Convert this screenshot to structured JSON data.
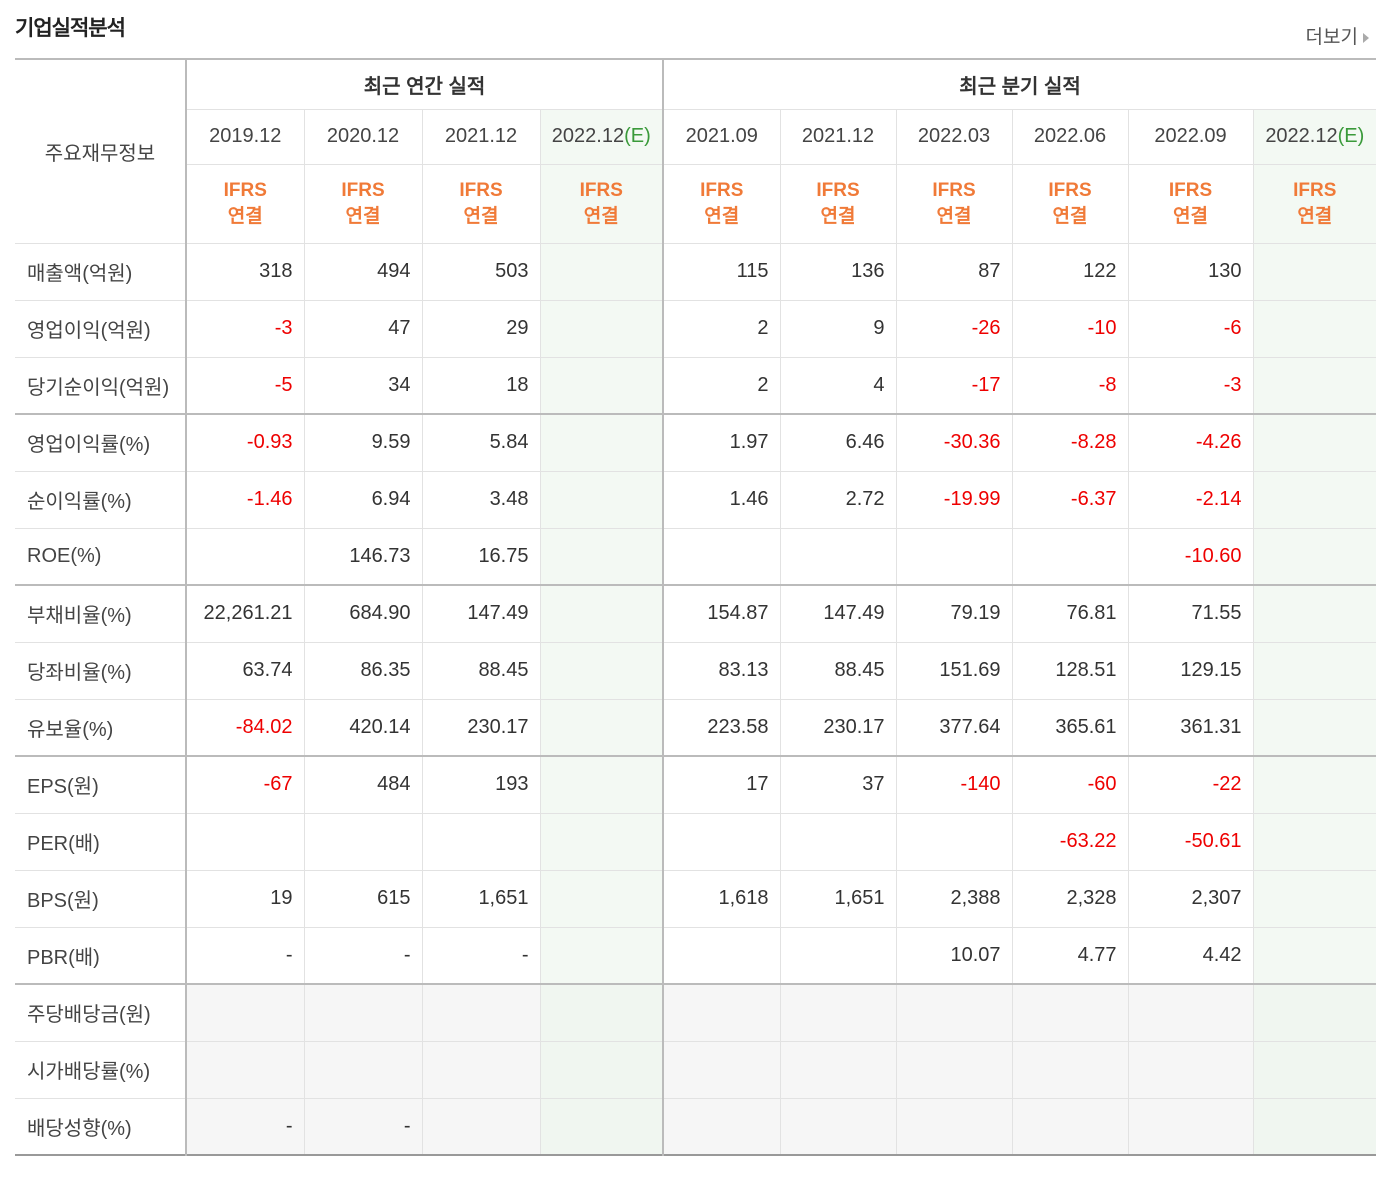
{
  "header": {
    "title": "기업실적분석",
    "more": "더보기"
  },
  "table": {
    "row_header": "주요재무정보",
    "groups": [
      {
        "name": "최근 연간 실적",
        "periods": [
          {
            "period": "2019.12",
            "basis": [
              "IFRS",
              "연결"
            ]
          },
          {
            "period": "2020.12",
            "basis": [
              "IFRS",
              "연결"
            ]
          },
          {
            "period": "2021.12",
            "basis": [
              "IFRS",
              "연결"
            ]
          },
          {
            "period": "2022.12",
            "estimate": "(E)",
            "basis": [
              "IFRS",
              "연결"
            ]
          }
        ]
      },
      {
        "name": "최근 분기 실적",
        "periods": [
          {
            "period": "2021.09",
            "basis": [
              "IFRS",
              "연결"
            ]
          },
          {
            "period": "2021.12",
            "basis": [
              "IFRS",
              "연결"
            ]
          },
          {
            "period": "2022.03",
            "basis": [
              "IFRS",
              "연결"
            ]
          },
          {
            "period": "2022.06",
            "basis": [
              "IFRS",
              "연결"
            ]
          },
          {
            "period": "2022.09",
            "basis": [
              "IFRS",
              "연결"
            ]
          },
          {
            "period": "2022.12",
            "estimate": "(E)",
            "basis": [
              "IFRS",
              "연결"
            ]
          }
        ]
      }
    ],
    "rows": [
      {
        "label": "매출액(억원)",
        "cells": [
          "318",
          "494",
          "503",
          null,
          "115",
          "136",
          "87",
          "122",
          "130",
          null
        ]
      },
      {
        "label": "영업이익(억원)",
        "cells": [
          "-3",
          "47",
          "29",
          null,
          "2",
          "9",
          "-26",
          "-10",
          "-6",
          null
        ]
      },
      {
        "label": "당기순이익(억원)",
        "cells": [
          "-5",
          "34",
          "18",
          null,
          "2",
          "4",
          "-17",
          "-8",
          "-3",
          null
        ]
      },
      {
        "label": "영업이익률(%)",
        "cells": [
          "-0.93",
          "9.59",
          "5.84",
          null,
          "1.97",
          "6.46",
          "-30.36",
          "-8.28",
          "-4.26",
          null
        ]
      },
      {
        "label": "순이익률(%)",
        "cells": [
          "-1.46",
          "6.94",
          "3.48",
          null,
          "1.46",
          "2.72",
          "-19.99",
          "-6.37",
          "-2.14",
          null
        ]
      },
      {
        "label": "ROE(%)",
        "cells": [
          null,
          "146.73",
          "16.75",
          null,
          null,
          null,
          null,
          null,
          "-10.60",
          null
        ]
      },
      {
        "label": "부채비율(%)",
        "cells": [
          "22,261.21",
          "684.90",
          "147.49",
          null,
          "154.87",
          "147.49",
          "79.19",
          "76.81",
          "71.55",
          null
        ]
      },
      {
        "label": "당좌비율(%)",
        "cells": [
          "63.74",
          "86.35",
          "88.45",
          null,
          "83.13",
          "88.45",
          "151.69",
          "128.51",
          "129.15",
          null
        ]
      },
      {
        "label": "유보율(%)",
        "cells": [
          "-84.02",
          "420.14",
          "230.17",
          null,
          "223.58",
          "230.17",
          "377.64",
          "365.61",
          "361.31",
          null
        ]
      },
      {
        "label": "EPS(원)",
        "cells": [
          "-67",
          "484",
          "193",
          null,
          "17",
          "37",
          "-140",
          "-60",
          "-22",
          null
        ]
      },
      {
        "label": "PER(배)",
        "cells": [
          null,
          null,
          null,
          null,
          null,
          null,
          null,
          "-63.22",
          "-50.61",
          null
        ]
      },
      {
        "label": "BPS(원)",
        "cells": [
          "19",
          "615",
          "1,651",
          null,
          "1,618",
          "1,651",
          "2,388",
          "2,328",
          "2,307",
          null
        ]
      },
      {
        "label": "PBR(배)",
        "cells": [
          "-",
          "-",
          "-",
          null,
          null,
          null,
          "10.07",
          "4.77",
          "4.42",
          null
        ]
      },
      {
        "label": "주당배당금(원)",
        "cells": [
          null,
          null,
          null,
          null,
          null,
          null,
          null,
          null,
          null,
          null
        ]
      },
      {
        "label": "시가배당률(%)",
        "cells": [
          null,
          null,
          null,
          null,
          null,
          null,
          null,
          null,
          null,
          null
        ]
      },
      {
        "label": "배당성향(%)",
        "cells": [
          "-",
          "-",
          null,
          null,
          null,
          null,
          null,
          null,
          null,
          null
        ]
      }
    ]
  }
}
